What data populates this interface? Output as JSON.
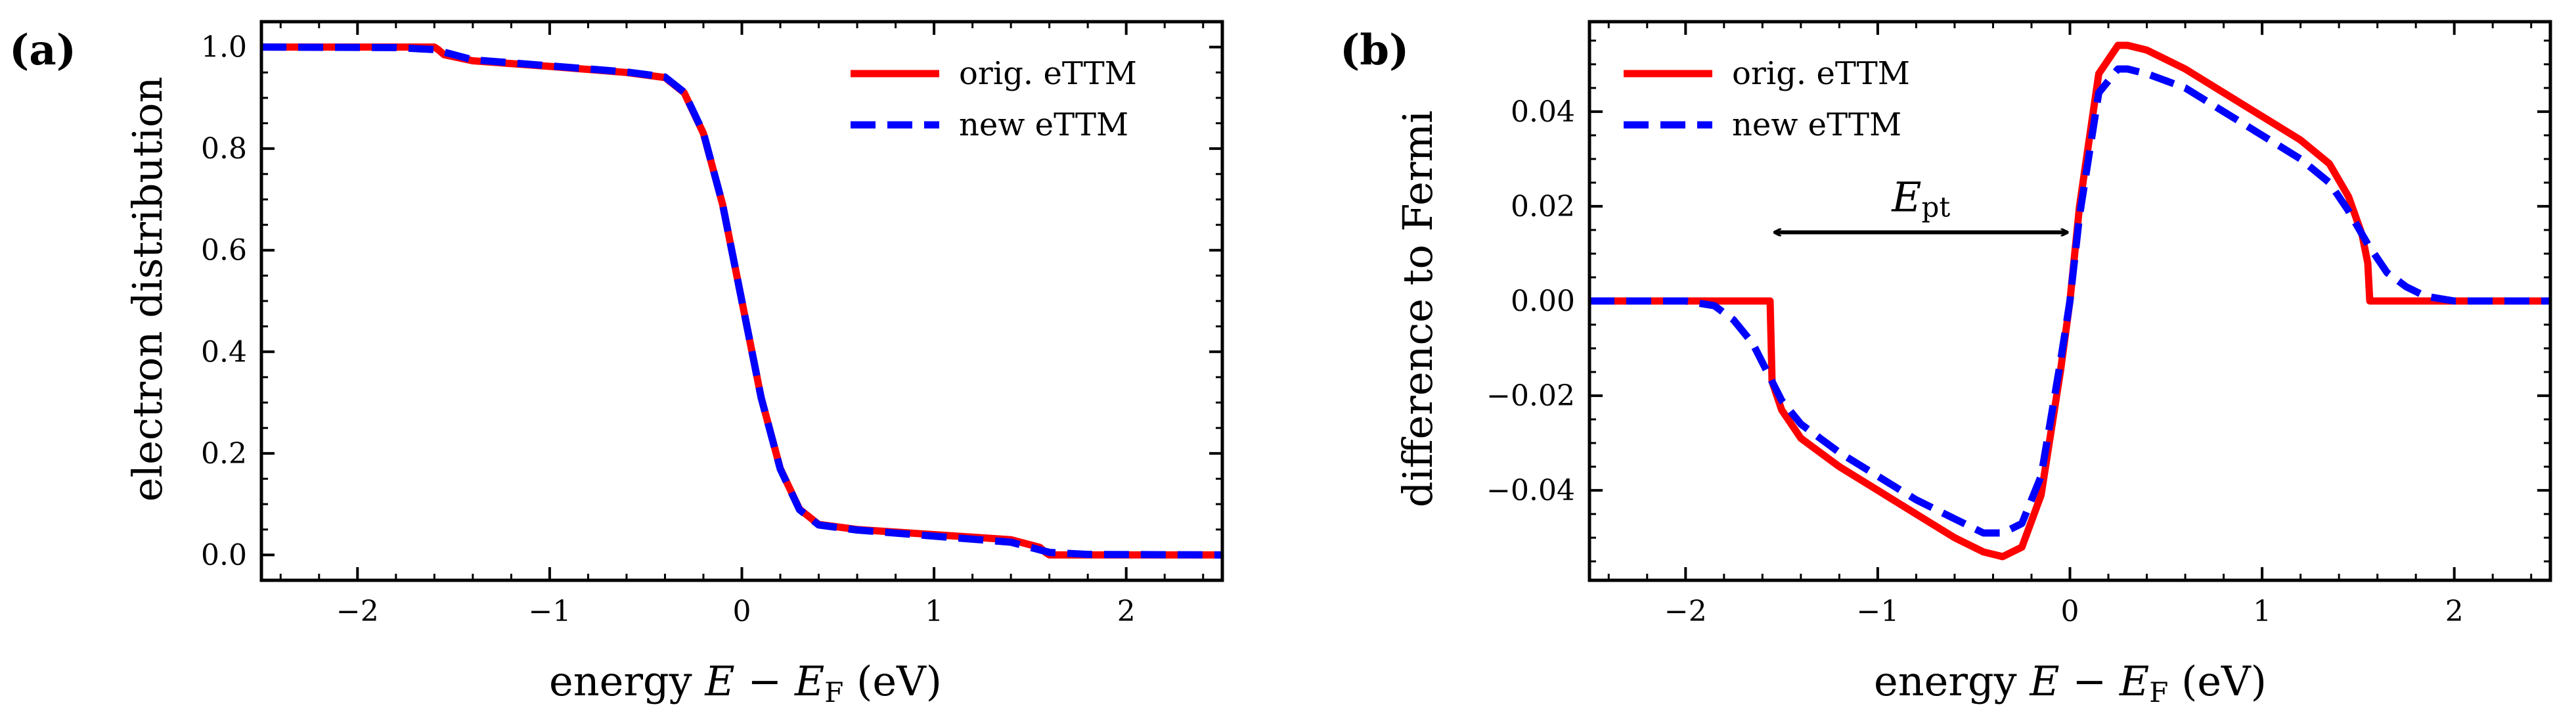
{
  "colors": {
    "orig": "#ff0000",
    "new": "#0000ff",
    "axis": "#000000"
  },
  "chart_data": [
    {
      "id": "a",
      "type": "line",
      "panel_label": "(a)",
      "xlabel": "energy E − E_F (eV)",
      "xlabel_parts": {
        "pre": "energy ",
        "E": "E",
        "minus": " − ",
        "EF": "E",
        "sub": "F",
        "post": " (eV)"
      },
      "ylabel": "electron distribution",
      "xlim": [
        -2.5,
        2.5
      ],
      "ylim": [
        -0.05,
        1.05
      ],
      "xticks": [
        -2,
        -1,
        0,
        1,
        2
      ],
      "xtick_labels": [
        "−2",
        "−1",
        "0",
        "1",
        "2"
      ],
      "yticks": [
        0.0,
        0.2,
        0.4,
        0.6,
        0.8,
        1.0
      ],
      "ytick_labels": [
        "0.0",
        "0.2",
        "0.4",
        "0.6",
        "0.8",
        "1.0"
      ],
      "legend": {
        "position": "top-right",
        "entries": [
          "orig. eTTM",
          "new eTTM"
        ]
      },
      "series": [
        {
          "name": "orig. eTTM",
          "style": "solid",
          "x": [
            -2.5,
            -1.6,
            -1.58,
            -1.55,
            -1.4,
            -1.0,
            -0.6,
            -0.4,
            -0.3,
            -0.2,
            -0.1,
            0.0,
            0.1,
            0.2,
            0.3,
            0.4,
            0.6,
            1.0,
            1.4,
            1.55,
            1.58,
            1.6,
            2.5
          ],
          "y": [
            1.0,
            1.0,
            0.995,
            0.985,
            0.973,
            0.962,
            0.95,
            0.94,
            0.91,
            0.83,
            0.69,
            0.5,
            0.31,
            0.17,
            0.09,
            0.06,
            0.05,
            0.04,
            0.03,
            0.015,
            0.005,
            0.0,
            0.0
          ]
        },
        {
          "name": "new eTTM",
          "style": "dashed",
          "x": [
            -2.5,
            -1.8,
            -1.6,
            -1.5,
            -1.4,
            -1.0,
            -0.6,
            -0.4,
            -0.3,
            -0.2,
            -0.1,
            0.0,
            0.1,
            0.2,
            0.3,
            0.4,
            0.6,
            1.0,
            1.4,
            1.5,
            1.6,
            1.8,
            2.5
          ],
          "y": [
            1.0,
            0.999,
            0.995,
            0.985,
            0.975,
            0.963,
            0.951,
            0.941,
            0.911,
            0.831,
            0.69,
            0.5,
            0.31,
            0.169,
            0.089,
            0.059,
            0.049,
            0.037,
            0.025,
            0.015,
            0.005,
            0.001,
            0.0
          ]
        }
      ]
    },
    {
      "id": "b",
      "type": "line",
      "panel_label": "(b)",
      "xlabel": "energy E − E_F (eV)",
      "xlabel_parts": {
        "pre": "energy ",
        "E": "E",
        "minus": " − ",
        "EF": "E",
        "sub": "F",
        "post": " (eV)"
      },
      "ylabel": "difference to Fermi",
      "xlim": [
        -2.5,
        2.5
      ],
      "ylim": [
        -0.059,
        0.059
      ],
      "xticks": [
        -2,
        -1,
        0,
        1,
        2
      ],
      "xtick_labels": [
        "−2",
        "−1",
        "0",
        "1",
        "2"
      ],
      "yticks": [
        -0.04,
        -0.02,
        0.0,
        0.02,
        0.04
      ],
      "ytick_labels": [
        "−0.04",
        "−0.02",
        "0.00",
        "0.02",
        "0.04"
      ],
      "legend": {
        "position": "top-left",
        "entries": [
          "orig. eTTM",
          "new eTTM"
        ]
      },
      "annotation": {
        "type": "double-arrow",
        "from_x": -1.55,
        "to_x": 0.0,
        "y": 0.0145,
        "label_E": "E",
        "label_sub": "pt"
      },
      "series": [
        {
          "name": "orig. eTTM",
          "style": "solid",
          "x": [
            -2.5,
            -1.56,
            -1.55,
            -1.5,
            -1.4,
            -1.2,
            -1.0,
            -0.8,
            -0.6,
            -0.45,
            -0.35,
            -0.25,
            -0.15,
            -0.05,
            0.0,
            0.05,
            0.15,
            0.25,
            0.3,
            0.4,
            0.6,
            0.8,
            1.0,
            1.2,
            1.35,
            1.45,
            1.52,
            1.55,
            1.56,
            2.5
          ],
          "y": [
            0.0,
            0.0,
            -0.017,
            -0.023,
            -0.029,
            -0.035,
            -0.04,
            -0.045,
            -0.05,
            -0.053,
            -0.054,
            -0.052,
            -0.041,
            -0.015,
            0.0,
            0.02,
            0.048,
            0.054,
            0.054,
            0.053,
            0.049,
            0.044,
            0.039,
            0.034,
            0.029,
            0.022,
            0.014,
            0.008,
            0.0,
            0.0
          ]
        },
        {
          "name": "new eTTM",
          "style": "dashed",
          "x": [
            -2.5,
            -2.0,
            -1.85,
            -1.75,
            -1.65,
            -1.6,
            -1.55,
            -1.5,
            -1.4,
            -1.2,
            -1.0,
            -0.8,
            -0.6,
            -0.45,
            -0.35,
            -0.25,
            -0.15,
            -0.05,
            0.0,
            0.05,
            0.15,
            0.25,
            0.3,
            0.4,
            0.6,
            0.8,
            1.0,
            1.2,
            1.35,
            1.45,
            1.55,
            1.65,
            1.75,
            1.85,
            2.0,
            2.5
          ],
          "y": [
            0.0,
            0.0,
            -0.001,
            -0.004,
            -0.009,
            -0.013,
            -0.017,
            -0.021,
            -0.026,
            -0.032,
            -0.037,
            -0.042,
            -0.046,
            -0.049,
            -0.049,
            -0.047,
            -0.037,
            -0.013,
            0.0,
            0.018,
            0.044,
            0.049,
            0.049,
            0.048,
            0.045,
            0.04,
            0.035,
            0.03,
            0.025,
            0.019,
            0.012,
            0.006,
            0.003,
            0.001,
            0.0,
            0.0
          ]
        }
      ]
    }
  ]
}
